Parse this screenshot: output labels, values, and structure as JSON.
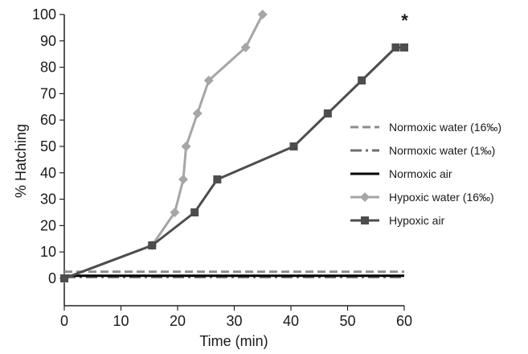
{
  "chart_data": {
    "type": "line",
    "xlabel": "Time (min)",
    "ylabel": "% Hatching",
    "xlim": [
      0,
      60
    ],
    "ylim": [
      -10,
      100
    ],
    "xticks": [
      0,
      10,
      20,
      30,
      40,
      50,
      60
    ],
    "yticks": [
      0,
      10,
      20,
      30,
      40,
      50,
      60,
      70,
      80,
      90,
      100
    ],
    "grid": false,
    "legend_position": "right",
    "annotations": [
      {
        "text": "*",
        "x": 59.5,
        "y": 87.5
      }
    ],
    "series": [
      {
        "name": "Normoxic water (16‰)",
        "color": "#8c8c8c",
        "style": "dashed",
        "marker": "none",
        "x": [
          0,
          60
        ],
        "y": [
          2.5,
          2.5
        ]
      },
      {
        "name": "Normoxic water (1‰)",
        "color": "#6e6e6e",
        "style": "dashdot",
        "marker": "none",
        "x": [
          0,
          60
        ],
        "y": [
          0.5,
          0.5
        ]
      },
      {
        "name": "Normoxic air",
        "color": "#000000",
        "style": "solid",
        "marker": "none",
        "x": [
          0,
          60
        ],
        "y": [
          1,
          1
        ]
      },
      {
        "name": "Hypoxic water (16‰)",
        "color": "#a6a6a6",
        "style": "solid",
        "marker": "diamond",
        "x": [
          0,
          15.5,
          19.5,
          21,
          21.5,
          23.5,
          25.5,
          32,
          35
        ],
        "y": [
          0,
          12.5,
          25,
          37.5,
          50,
          62.5,
          75,
          87.5,
          100
        ]
      },
      {
        "name": "Hypoxic air",
        "color": "#4d4d4d",
        "style": "solid",
        "marker": "square",
        "x": [
          0,
          15.5,
          23,
          27,
          40.5,
          46.5,
          52.5,
          58.5,
          60
        ],
        "y": [
          0,
          12.5,
          25,
          37.5,
          50,
          62.5,
          75,
          87.5,
          87.5
        ]
      }
    ]
  }
}
